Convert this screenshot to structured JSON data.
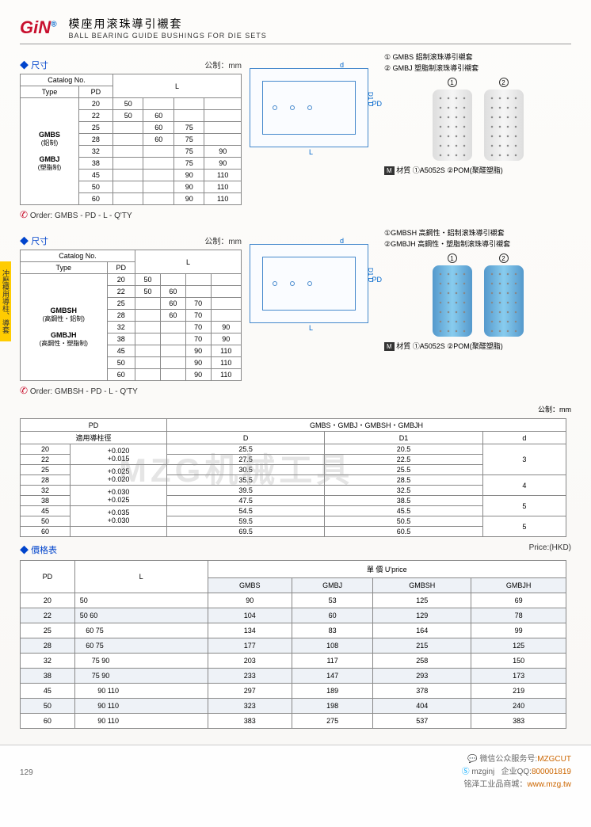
{
  "header": {
    "logo": "GiN",
    "title_cn": "模座用滚珠導引襯套",
    "title_en": "BALL BEARING GUIDE BUSHINGS FOR DIE SETS"
  },
  "side_tab": "冲壓模用導柱、導套",
  "section1": {
    "label": "尺寸",
    "unit": "公制：mm",
    "cols": [
      "Catalog No.",
      "",
      "L"
    ],
    "subcols": [
      "Type",
      "PD",
      ""
    ],
    "types": [
      "GMBS",
      "(鋁制)",
      "GMBJ",
      "(塑脂制)"
    ],
    "rows": [
      [
        "20",
        "50",
        "",
        "",
        ""
      ],
      [
        "22",
        "50",
        "60",
        "",
        ""
      ],
      [
        "25",
        "",
        "60",
        "75",
        ""
      ],
      [
        "28",
        "",
        "60",
        "75",
        ""
      ],
      [
        "32",
        "",
        "",
        "75",
        "90"
      ],
      [
        "38",
        "",
        "",
        "75",
        "90"
      ],
      [
        "45",
        "",
        "",
        "90",
        "110"
      ],
      [
        "50",
        "",
        "",
        "90",
        "110"
      ],
      [
        "60",
        "",
        "",
        "90",
        "110"
      ]
    ],
    "order": "Order:   GMBS   -   PD   -   L   -   Q'TY",
    "legend": [
      "① GMBS 鋁制滚珠導引襯套",
      "② GMBJ 塑脂制滚珠導引襯套"
    ],
    "material": "材質  ①A5052S  ②POM(聚醛塑脂)"
  },
  "section2": {
    "label": "尺寸",
    "unit": "公制：mm",
    "types": [
      "GMBSH",
      "(高鋼性・鋁制)",
      "GMBJH",
      "(高鋼性・塑脂制)"
    ],
    "rows": [
      [
        "20",
        "50",
        "",
        "",
        ""
      ],
      [
        "22",
        "50",
        "60",
        "",
        ""
      ],
      [
        "25",
        "",
        "60",
        "70",
        ""
      ],
      [
        "28",
        "",
        "60",
        "70",
        ""
      ],
      [
        "32",
        "",
        "",
        "70",
        "90"
      ],
      [
        "38",
        "",
        "",
        "70",
        "90"
      ],
      [
        "45",
        "",
        "",
        "90",
        "110"
      ],
      [
        "50",
        "",
        "",
        "90",
        "110"
      ],
      [
        "60",
        "",
        "",
        "90",
        "110"
      ]
    ],
    "order": "Order:   GMBSH   -   PD   -   L   -   Q'TY",
    "legend": [
      "①GMBSH 高鋼性・鋁制滚珠導引襯套",
      "②GMBJH 高鋼性・塑脂制滚珠導引襯套"
    ],
    "material": "材質  ①A5052S  ②POM(聚醛塑脂)"
  },
  "dim_table": {
    "unit": "公制：mm",
    "header1": [
      "PD",
      "GMBS・GMBJ・GMBSH・GMBJH"
    ],
    "header2": [
      "適用導柱徑",
      "D",
      "D1",
      "d"
    ],
    "rows": [
      [
        "20",
        "",
        "25.5",
        "20.5",
        ""
      ],
      [
        "22",
        "+0.020",
        "27.5",
        "22.5",
        "3"
      ],
      [
        "25",
        "+0.015",
        "30.5",
        "25.5",
        ""
      ],
      [
        "28",
        "+0.025",
        "35.5",
        "28.5",
        "4"
      ],
      [
        "32",
        "+0.020",
        "39.5",
        "32.5",
        ""
      ],
      [
        "38",
        "+0.030",
        "47.5",
        "38.5",
        "5"
      ],
      [
        "45",
        "+0.025",
        "54.5",
        "45.5",
        ""
      ],
      [
        "50",
        "+0.035",
        "59.5",
        "50.5",
        "5"
      ],
      [
        "60",
        "+0.030",
        "69.5",
        "60.5",
        ""
      ]
    ]
  },
  "price": {
    "label": "價格表",
    "unit": "Price:(HKD)",
    "cols": [
      "PD",
      "L",
      "GMBS",
      "GMBJ",
      "GMBSH",
      "GMBJH"
    ],
    "header_span": "單 價 U'price",
    "rows": [
      [
        "20",
        "50",
        "90",
        "53",
        "125",
        "69"
      ],
      [
        "22",
        "50 60",
        "104",
        "60",
        "129",
        "78"
      ],
      [
        "25",
        "   60 75",
        "134",
        "83",
        "164",
        "99"
      ],
      [
        "28",
        "   60 75",
        "177",
        "108",
        "215",
        "125"
      ],
      [
        "32",
        "      75 90",
        "203",
        "117",
        "258",
        "150"
      ],
      [
        "38",
        "      75 90",
        "233",
        "147",
        "293",
        "173"
      ],
      [
        "45",
        "         90 110",
        "297",
        "189",
        "378",
        "219"
      ],
      [
        "50",
        "         90 110",
        "323",
        "198",
        "404",
        "240"
      ],
      [
        "60",
        "         90 110",
        "383",
        "275",
        "537",
        "383"
      ]
    ]
  },
  "footer": {
    "page": "129",
    "wechat": "微信公众服务号:",
    "wechat_id": "MZGCUT",
    "skype": "mzginj",
    "qq_label": "企业QQ:",
    "qq": "800001819",
    "shop": "铭泽工业品商城：",
    "url": "www.mzg.tw"
  },
  "watermark": "MZG机械工具"
}
